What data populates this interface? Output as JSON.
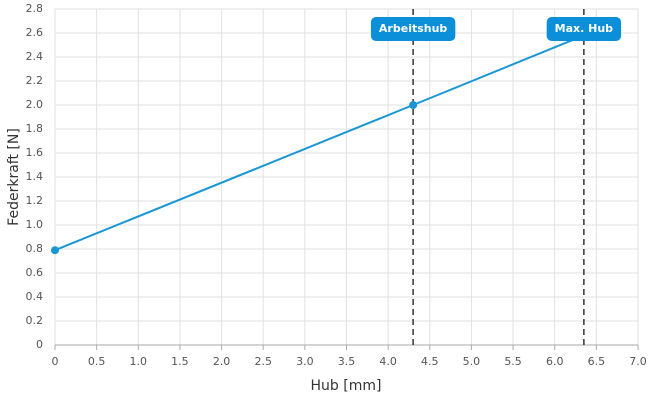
{
  "chart_data": {
    "type": "line",
    "xlabel": "Hub [mm]",
    "ylabel": "Federkraft [N]",
    "xlim": [
      0,
      7
    ],
    "ylim": [
      0,
      2.8
    ],
    "xticks": [
      0,
      0.5,
      {
        "value": 1,
        "label": "1.0"
      },
      1.5,
      {
        "value": 2,
        "label": "2.0"
      },
      2.5,
      {
        "value": 3,
        "label": "3.0"
      },
      3.5,
      {
        "value": 4,
        "label": "4.0"
      },
      4.5,
      {
        "value": 5,
        "label": "5.0"
      },
      5.5,
      {
        "value": 6,
        "label": "6.0"
      },
      6.5,
      {
        "value": 7,
        "label": "7.0"
      }
    ],
    "yticks": [
      0,
      0.2,
      0.4,
      0.6,
      0.8,
      {
        "value": 1,
        "label": "1.0"
      },
      1.2,
      1.4,
      1.6,
      1.8,
      {
        "value": 2,
        "label": "2.0"
      },
      2.2,
      2.4,
      2.6,
      2.8
    ],
    "grid": true,
    "series": [
      {
        "x": [
          0,
          4.3,
          6.35
        ],
        "values": [
          0.79,
          2.0,
          2.58
        ],
        "color": "#1a96d4"
      }
    ],
    "annotations": [
      {
        "x": 4.3,
        "label": "Arbeitshub"
      },
      {
        "x": 6.35,
        "label": "Max. Hub"
      }
    ]
  }
}
